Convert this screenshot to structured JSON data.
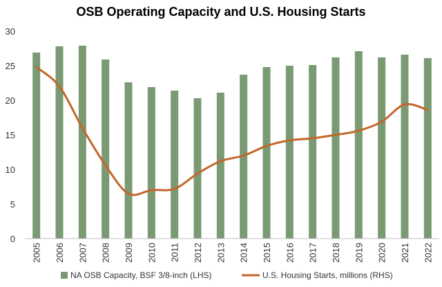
{
  "chart_data": {
    "type": "bar",
    "title": "OSB Operating Capacity and U.S. Housing Starts",
    "categories": [
      "2005",
      "2006",
      "2007",
      "2008",
      "2009",
      "2010",
      "2011",
      "2012",
      "2013",
      "2014",
      "2015",
      "2016",
      "2017",
      "2018",
      "2019",
      "2020",
      "2021",
      "2022"
    ],
    "ylim": [
      0,
      30
    ],
    "yticks": [
      "0",
      "5",
      "10",
      "15",
      "20",
      "25",
      "30"
    ],
    "grid": false,
    "legend_position": "bottom",
    "series": [
      {
        "name": "NA OSB Capacity, BSF 3/8-inch (LHS)",
        "type": "bar",
        "color": "#7a9a73",
        "values": [
          26.9,
          27.8,
          27.9,
          25.9,
          22.6,
          21.9,
          21.4,
          20.3,
          21.1,
          23.7,
          24.8,
          25.0,
          25.1,
          26.2,
          27.1,
          26.2,
          26.6,
          26.1
        ]
      },
      {
        "name": "U.S. Housing Starts, millions (RHS)",
        "type": "line",
        "color": "#c2662b",
        "values": [
          24.8,
          22.0,
          16.0,
          10.6,
          6.5,
          7.0,
          7.2,
          9.4,
          11.2,
          12.0,
          13.4,
          14.2,
          14.5,
          15.0,
          15.6,
          16.9,
          19.4,
          18.6
        ]
      }
    ]
  }
}
